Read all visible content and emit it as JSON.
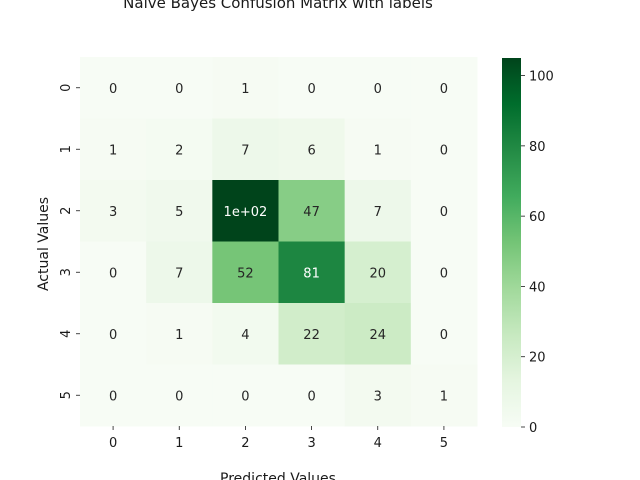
{
  "chart_data": {
    "type": "heatmap",
    "title": "Naive Bayes Confusion Matrix with labels",
    "xlabel": "Predicted Values",
    "ylabel": "Actual Values",
    "x_categories": [
      "0",
      "1",
      "2",
      "3",
      "4",
      "5"
    ],
    "y_categories": [
      "0",
      "1",
      "2",
      "3",
      "4",
      "5"
    ],
    "values": [
      [
        0,
        0,
        1,
        0,
        0,
        0
      ],
      [
        1,
        2,
        7,
        6,
        1,
        0
      ],
      [
        3,
        5,
        105,
        47,
        7,
        0
      ],
      [
        0,
        7,
        52,
        81,
        20,
        0
      ],
      [
        0,
        1,
        4,
        22,
        24,
        0
      ],
      [
        0,
        0,
        0,
        0,
        3,
        1
      ]
    ],
    "cell_labels": [
      [
        "0",
        "0",
        "1",
        "0",
        "0",
        "0"
      ],
      [
        "1",
        "2",
        "7",
        "6",
        "1",
        "0"
      ],
      [
        "3",
        "5",
        "1e+02",
        "47",
        "7",
        "0"
      ],
      [
        "0",
        "7",
        "52",
        "81",
        "20",
        "0"
      ],
      [
        "0",
        "1",
        "4",
        "22",
        "24",
        "0"
      ],
      [
        "0",
        "0",
        "0",
        "0",
        "3",
        "1"
      ]
    ],
    "colormap": "Greens",
    "color_range": [
      0,
      105
    ],
    "colorbar_ticks": [
      0,
      20,
      40,
      60,
      80,
      100
    ],
    "colors": {
      "low": "#f7fcf5",
      "high": "#00441b"
    },
    "grid": false,
    "colorbar": "right"
  }
}
